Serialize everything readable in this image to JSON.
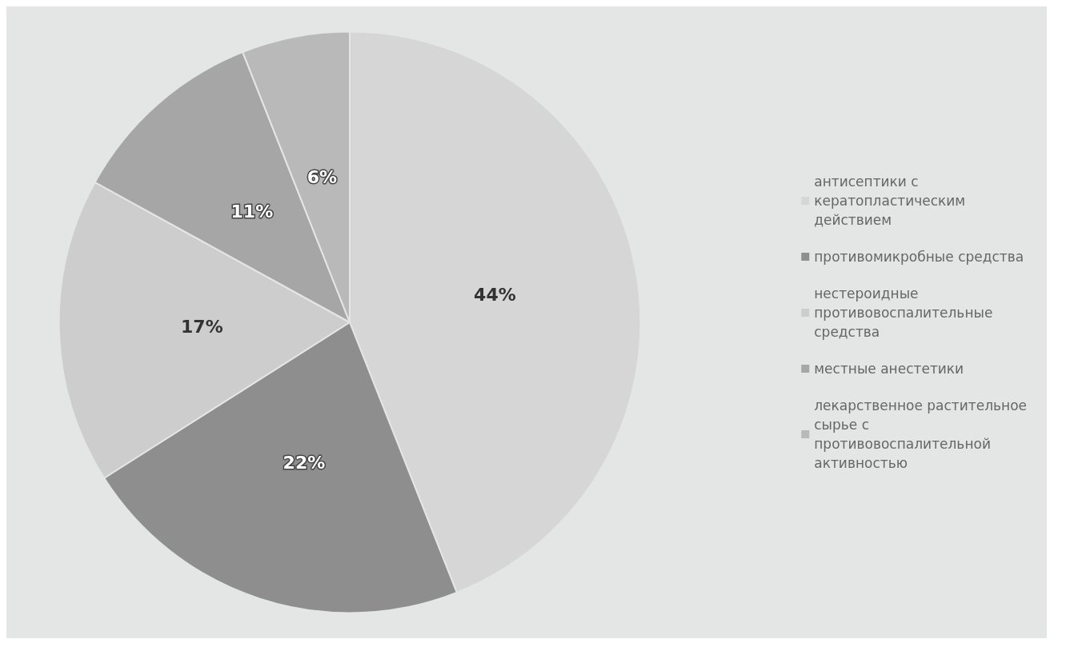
{
  "chart_data": {
    "type": "pie",
    "categories": [
      "антисептики с кератопластическим действием",
      "противомикробные средства",
      "нестероидные противовоспалительные средства",
      "местные анестетики",
      "лекарственное растительное сырье с противовоспалительной активностью"
    ],
    "values": [
      44,
      22,
      17,
      11,
      6
    ],
    "colors": [
      "#d6d6d6",
      "#8e8e8e",
      "#cdcdcd",
      "#a6a6a6",
      "#b9b9b9"
    ],
    "value_labels": [
      "44%",
      "22%",
      "17%",
      "11%",
      "6%"
    ],
    "legend": "right"
  }
}
